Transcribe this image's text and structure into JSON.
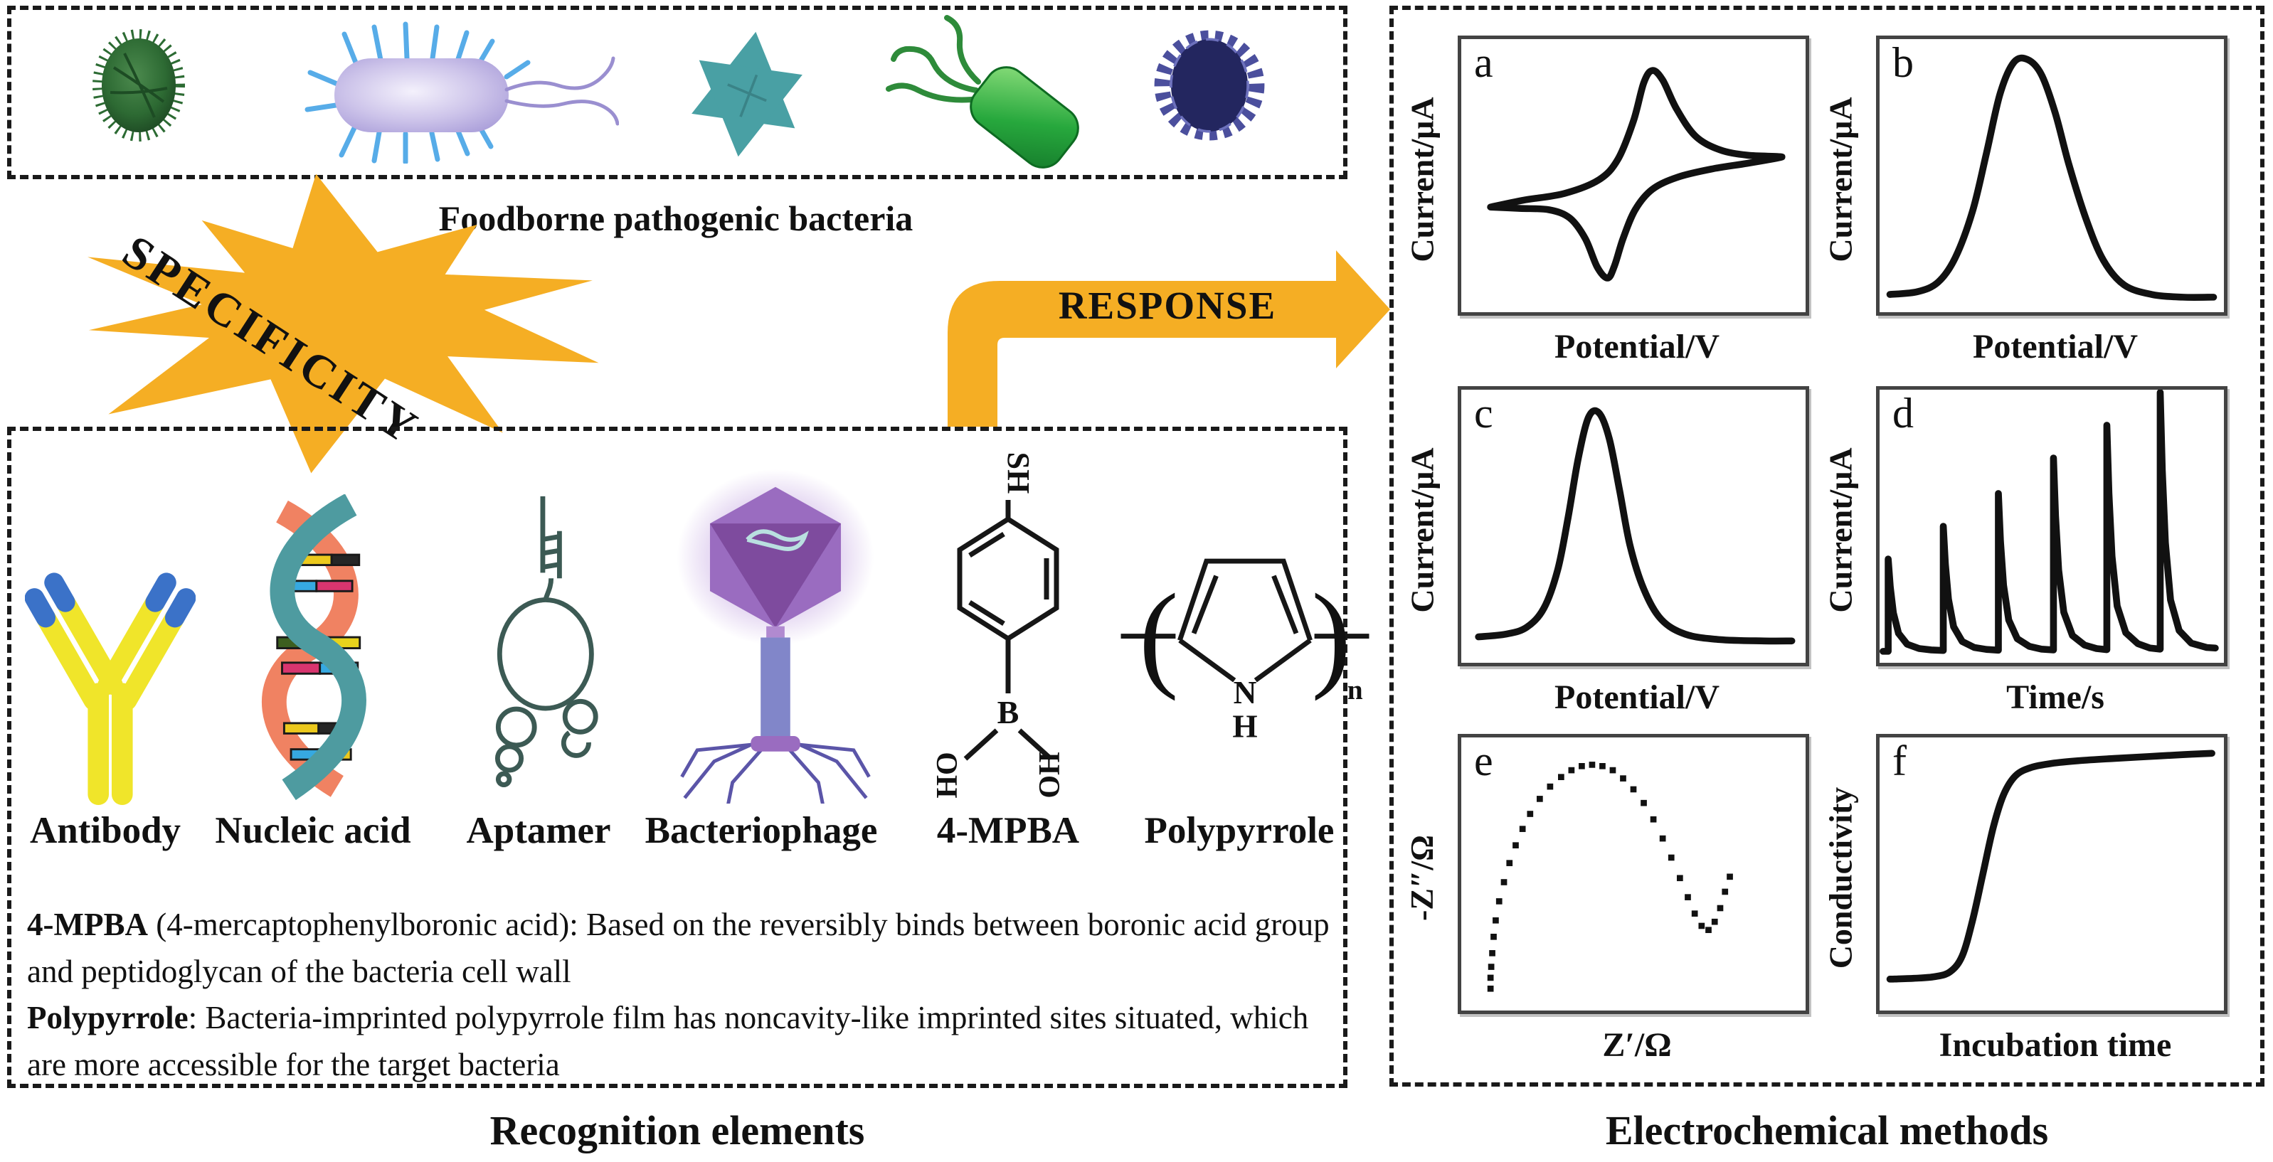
{
  "figure": {
    "colors": {
      "accent_yellow": "#F5AE24",
      "line_black": "#111111"
    },
    "top_box": {
      "caption": "Foodborne pathogenic bacteria",
      "bacteria_icons": [
        "spiky-coccus-icon",
        "pili-rod-bacterium-icon",
        "star-bacterium-icon",
        "flagellated-rod-bacterium-icon",
        "virus-particle-icon"
      ]
    },
    "arrows": {
      "specificity": "SPECIFICITY",
      "response": "RESPONSE"
    },
    "recognition_box": {
      "caption": "Recognition elements",
      "element_labels": [
        "Antibody",
        "Nucleic acid",
        "Aptamer",
        "Bacteriophage",
        "4-MPBA",
        "Polypyrrole"
      ],
      "mpba_structure": {
        "thiol": "SH",
        "boron": "B",
        "hydroxyl_left": "HO",
        "hydroxyl_right": "OH"
      },
      "polypyrrole_structure": {
        "nitrogen": "N",
        "hydrogen": "H",
        "repeat_subscript": "n"
      },
      "notes": [
        {
          "term": "4-MPBA",
          "text": " (4-mercaptophenylboronic acid): Based on the reversibly binds between boronic acid group and peptidoglycan of the bacteria cell wall"
        },
        {
          "term": "Polypyrrole",
          "text": ": Bacteria-imprinted polypyrrole film has noncavity-like imprinted sites situated, which are more accessible for the target bacteria"
        }
      ]
    },
    "methods_box": {
      "caption": "Electrochemical methods",
      "charts": [
        {
          "id": "a",
          "letter": "a",
          "ylabel": "Current/μA",
          "xlabel": "Potential/V",
          "type": "line",
          "smooth": true,
          "points": [
            [
              0.085,
              0.615
            ],
            [
              0.18,
              0.59
            ],
            [
              0.3,
              0.565
            ],
            [
              0.4,
              0.515
            ],
            [
              0.455,
              0.44
            ],
            [
              0.5,
              0.3
            ],
            [
              0.53,
              0.16
            ],
            [
              0.555,
              0.115
            ],
            [
              0.585,
              0.15
            ],
            [
              0.625,
              0.255
            ],
            [
              0.68,
              0.355
            ],
            [
              0.75,
              0.405
            ],
            [
              0.83,
              0.425
            ],
            [
              0.92,
              0.43
            ],
            [
              0.92,
              0.435
            ],
            [
              0.83,
              0.455
            ],
            [
              0.73,
              0.475
            ],
            [
              0.63,
              0.505
            ],
            [
              0.555,
              0.55
            ],
            [
              0.505,
              0.625
            ],
            [
              0.47,
              0.73
            ],
            [
              0.445,
              0.83
            ],
            [
              0.425,
              0.875
            ],
            [
              0.395,
              0.835
            ],
            [
              0.36,
              0.73
            ],
            [
              0.315,
              0.655
            ],
            [
              0.255,
              0.625
            ],
            [
              0.17,
              0.62
            ],
            [
              0.085,
              0.615
            ]
          ]
        },
        {
          "id": "b",
          "letter": "b",
          "ylabel": "Current/μA",
          "xlabel": "Potential/V",
          "type": "line",
          "smooth": true,
          "points": [
            [
              0.03,
              0.935
            ],
            [
              0.11,
              0.925
            ],
            [
              0.17,
              0.89
            ],
            [
              0.22,
              0.8
            ],
            [
              0.27,
              0.63
            ],
            [
              0.31,
              0.42
            ],
            [
              0.35,
              0.2
            ],
            [
              0.39,
              0.085
            ],
            [
              0.43,
              0.075
            ],
            [
              0.47,
              0.13
            ],
            [
              0.51,
              0.27
            ],
            [
              0.55,
              0.46
            ],
            [
              0.6,
              0.66
            ],
            [
              0.65,
              0.81
            ],
            [
              0.71,
              0.9
            ],
            [
              0.79,
              0.935
            ],
            [
              0.88,
              0.945
            ],
            [
              0.97,
              0.945
            ]
          ]
        },
        {
          "id": "c",
          "letter": "c",
          "ylabel": "Current/μA",
          "xlabel": "Potential/V",
          "type": "line",
          "smooth": true,
          "points": [
            [
              0.05,
              0.905
            ],
            [
              0.13,
              0.895
            ],
            [
              0.19,
              0.87
            ],
            [
              0.24,
              0.8
            ],
            [
              0.28,
              0.66
            ],
            [
              0.31,
              0.47
            ],
            [
              0.34,
              0.25
            ],
            [
              0.37,
              0.1
            ],
            [
              0.4,
              0.085
            ],
            [
              0.43,
              0.18
            ],
            [
              0.46,
              0.37
            ],
            [
              0.49,
              0.57
            ],
            [
              0.53,
              0.73
            ],
            [
              0.58,
              0.84
            ],
            [
              0.65,
              0.895
            ],
            [
              0.75,
              0.915
            ],
            [
              0.88,
              0.92
            ],
            [
              0.96,
              0.92
            ]
          ]
        },
        {
          "id": "d",
          "letter": "d",
          "ylabel": "Current/μA",
          "xlabel": "Time/s",
          "type": "line",
          "smooth": false,
          "points": [
            [
              0.01,
              0.958
            ],
            [
              0.025,
              0.958
            ],
            [
              0.025,
              0.62
            ],
            [
              0.031,
              0.722
            ],
            [
              0.04,
              0.817
            ],
            [
              0.055,
              0.892
            ],
            [
              0.08,
              0.932
            ],
            [
              0.115,
              0.948
            ],
            [
              0.15,
              0.953
            ],
            [
              0.185,
              0.955
            ],
            [
              0.185,
              0.5
            ],
            [
              0.191,
              0.638
            ],
            [
              0.2,
              0.767
            ],
            [
              0.215,
              0.868
            ],
            [
              0.24,
              0.922
            ],
            [
              0.275,
              0.944
            ],
            [
              0.31,
              0.951
            ],
            [
              0.345,
              0.954
            ],
            [
              0.345,
              0.38
            ],
            [
              0.351,
              0.554
            ],
            [
              0.36,
              0.716
            ],
            [
              0.375,
              0.843
            ],
            [
              0.4,
              0.912
            ],
            [
              0.435,
              0.94
            ],
            [
              0.47,
              0.95
            ],
            [
              0.505,
              0.953
            ],
            [
              0.505,
              0.25
            ],
            [
              0.511,
              0.463
            ],
            [
              0.52,
              0.66
            ],
            [
              0.535,
              0.815
            ],
            [
              0.56,
              0.9
            ],
            [
              0.595,
              0.935
            ],
            [
              0.63,
              0.948
            ],
            [
              0.66,
              0.952
            ],
            [
              0.66,
              0.13
            ],
            [
              0.666,
              0.379
            ],
            [
              0.675,
              0.61
            ],
            [
              0.69,
              0.792
            ],
            [
              0.715,
              0.89
            ],
            [
              0.75,
              0.93
            ],
            [
              0.785,
              0.946
            ],
            [
              0.815,
              0.95
            ],
            [
              0.815,
              0.01
            ],
            [
              0.821,
              0.295
            ],
            [
              0.83,
              0.56
            ],
            [
              0.845,
              0.77
            ],
            [
              0.87,
              0.882
            ],
            [
              0.905,
              0.928
            ],
            [
              0.95,
              0.944
            ],
            [
              0.975,
              0.946
            ]
          ]
        },
        {
          "id": "e",
          "letter": "e",
          "ylabel": "-Z″/Ω",
          "xlabel": "Z′/Ω",
          "type": "scatter",
          "smooth": false,
          "points": [
            [
              0.085,
              0.92
            ],
            [
              0.085,
              0.88
            ],
            [
              0.087,
              0.84
            ],
            [
              0.09,
              0.79
            ],
            [
              0.094,
              0.73
            ],
            [
              0.1,
              0.67
            ],
            [
              0.11,
              0.6
            ],
            [
              0.124,
              0.53
            ],
            [
              0.14,
              0.46
            ],
            [
              0.158,
              0.395
            ],
            [
              0.178,
              0.335
            ],
            [
              0.2,
              0.28
            ],
            [
              0.228,
              0.225
            ],
            [
              0.258,
              0.18
            ],
            [
              0.29,
              0.145
            ],
            [
              0.32,
              0.12
            ],
            [
              0.35,
              0.105
            ],
            [
              0.38,
              0.1
            ],
            [
              0.41,
              0.105
            ],
            [
              0.44,
              0.12
            ],
            [
              0.47,
              0.15
            ],
            [
              0.5,
              0.19
            ],
            [
              0.53,
              0.24
            ],
            [
              0.558,
              0.3
            ],
            [
              0.585,
              0.37
            ],
            [
              0.61,
              0.44
            ],
            [
              0.635,
              0.515
            ],
            [
              0.658,
              0.585
            ],
            [
              0.678,
              0.645
            ],
            [
              0.698,
              0.69
            ],
            [
              0.718,
              0.705
            ],
            [
              0.736,
              0.675
            ],
            [
              0.752,
              0.625
            ],
            [
              0.766,
              0.565
            ],
            [
              0.78,
              0.51
            ]
          ]
        },
        {
          "id": "f",
          "letter": "f",
          "ylabel": "Conductivity",
          "xlabel": "Incubation time",
          "type": "line",
          "smooth": true,
          "points": [
            [
              0.03,
              0.885
            ],
            [
              0.1,
              0.882
            ],
            [
              0.16,
              0.876
            ],
            [
              0.205,
              0.858
            ],
            [
              0.24,
              0.8
            ],
            [
              0.27,
              0.67
            ],
            [
              0.3,
              0.5
            ],
            [
              0.33,
              0.33
            ],
            [
              0.36,
              0.21
            ],
            [
              0.395,
              0.14
            ],
            [
              0.44,
              0.11
            ],
            [
              0.5,
              0.095
            ],
            [
              0.58,
              0.085
            ],
            [
              0.68,
              0.077
            ],
            [
              0.78,
              0.07
            ],
            [
              0.88,
              0.063
            ],
            [
              0.965,
              0.058
            ]
          ]
        }
      ]
    }
  }
}
